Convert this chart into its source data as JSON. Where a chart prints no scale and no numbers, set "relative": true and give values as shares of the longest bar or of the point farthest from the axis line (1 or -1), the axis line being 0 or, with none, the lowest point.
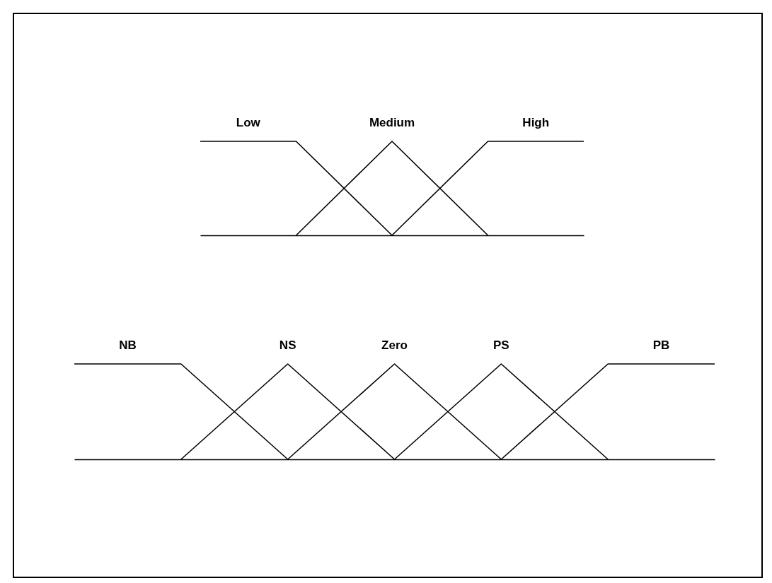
{
  "chart_data": [
    {
      "type": "line",
      "relative": true,
      "categories": [
        null,
        null,
        null,
        null,
        null
      ],
      "series": [
        {
          "name": "Low",
          "color": "#000000",
          "values": [
            1,
            1,
            0,
            null,
            null
          ]
        },
        {
          "name": "Medium",
          "color": "#000000",
          "values": [
            null,
            0,
            1,
            0,
            null
          ]
        },
        {
          "name": "High",
          "color": "#000000",
          "values": [
            null,
            null,
            0,
            1,
            1
          ]
        }
      ]
    },
    {
      "type": "line",
      "relative": true,
      "categories": [
        null,
        null,
        null,
        null,
        null,
        null,
        null
      ],
      "series": [
        {
          "name": "NB",
          "color": "#000000",
          "values": [
            1,
            1,
            0,
            null,
            null,
            null,
            null
          ]
        },
        {
          "name": "NS",
          "color": "#000000",
          "values": [
            null,
            0,
            1,
            0,
            null,
            null,
            null
          ]
        },
        {
          "name": "Zero",
          "color": "#000000",
          "values": [
            null,
            null,
            0,
            1,
            0,
            null,
            null
          ]
        },
        {
          "name": "PS",
          "color": "#000000",
          "values": [
            null,
            null,
            null,
            0,
            1,
            0,
            null
          ]
        },
        {
          "name": "PB",
          "color": "#000000",
          "values": [
            null,
            null,
            null,
            null,
            0,
            1,
            1
          ]
        }
      ]
    }
  ]
}
